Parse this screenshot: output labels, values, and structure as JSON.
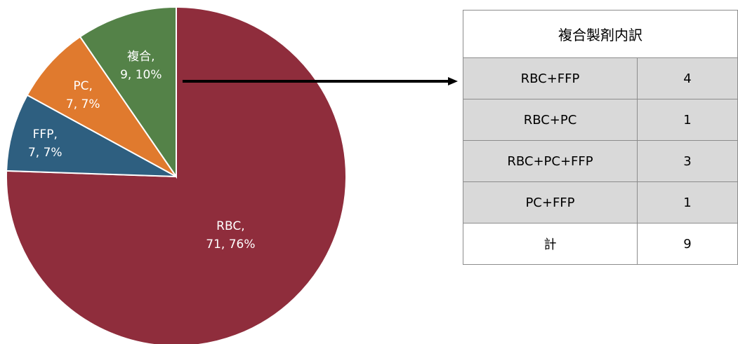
{
  "chart_data": {
    "type": "pie",
    "slices": [
      {
        "label": "RBC",
        "value": 71,
        "percent": "76%",
        "color": "#8f2d3c"
      },
      {
        "label": "FFP",
        "value": 7,
        "percent": "7%",
        "color": "#2e5f80"
      },
      {
        "label": "PC",
        "value": 7,
        "percent": "7%",
        "color": "#e07a2e"
      },
      {
        "label": "複合",
        "value": 9,
        "percent": "10%",
        "color": "#548248"
      }
    ]
  },
  "table": {
    "title": "複合製剤内訳",
    "rows": [
      {
        "name": "RBC+FFP",
        "count": "4"
      },
      {
        "name": "RBC+PC",
        "count": "1"
      },
      {
        "name": "RBC+PC+FFP",
        "count": "3"
      },
      {
        "name": "PC+FFP",
        "count": "1"
      }
    ],
    "total": {
      "name": "計",
      "count": "9"
    }
  }
}
